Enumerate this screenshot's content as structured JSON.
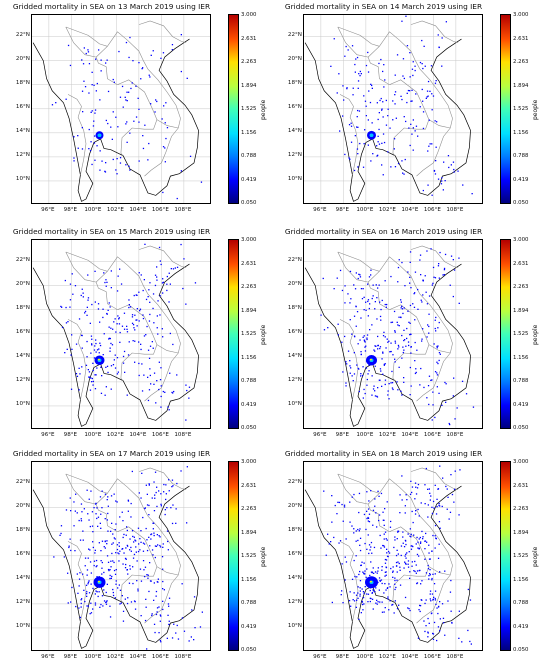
{
  "panels": [
    {
      "title": "Gridded mortality in SEA on 13 March 2019 using IER"
    },
    {
      "title": "Gridded mortality in SEA on 14 March 2019 using IER"
    },
    {
      "title": "Gridded mortality in SEA on 15 March 2019 using IER"
    },
    {
      "title": "Gridded mortality in SEA on 16 March 2019 using IER"
    },
    {
      "title": "Gridded mortality in SEA on 17 March 2019 using IER"
    },
    {
      "title": "Gridded mortality in SEA on 18 March 2019 using IER"
    }
  ],
  "lat_labels": [
    "22°N",
    "20°N",
    "18°N",
    "16°N",
    "14°N",
    "12°N",
    "10°N"
  ],
  "lon_labels": [
    "96°E",
    "98°E",
    "100°E",
    "102°E",
    "104°E",
    "106°E",
    "108°E"
  ],
  "colorbar": {
    "unit": "people",
    "ticks": [
      "3.000",
      "2.631",
      "2.263",
      "1.894",
      "1.525",
      "1.156",
      "0.788",
      "0.419",
      "0.050"
    ],
    "colormap": "jet"
  },
  "colors": {
    "low": "#0000ff",
    "mid": "#00c0ff",
    "high": "#ffff00",
    "border": "#909090",
    "coast": "#000000"
  }
}
